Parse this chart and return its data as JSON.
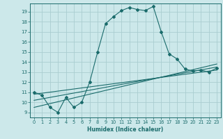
{
  "xlabel": "Humidex (Indice chaleur)",
  "bg_color": "#cce8ea",
  "grid_color": "#aacdd0",
  "line_color": "#1a6b6b",
  "xlim": [
    -0.5,
    23.5
  ],
  "ylim": [
    8.5,
    19.8
  ],
  "yticks": [
    9,
    10,
    11,
    12,
    13,
    14,
    15,
    16,
    17,
    18,
    19
  ],
  "xticks": [
    0,
    1,
    2,
    3,
    4,
    5,
    6,
    7,
    8,
    9,
    10,
    11,
    12,
    13,
    14,
    15,
    16,
    17,
    18,
    19,
    20,
    21,
    22,
    23
  ],
  "series": [
    {
      "x": [
        0,
        1,
        2,
        3,
        4,
        5,
        6,
        7,
        8,
        9,
        10,
        11,
        12,
        13,
        14,
        15,
        16,
        17,
        18,
        19,
        20,
        21,
        22,
        23
      ],
      "y": [
        11.0,
        10.7,
        9.5,
        9.0,
        10.5,
        9.5,
        10.0,
        12.0,
        15.0,
        17.8,
        18.5,
        19.1,
        19.4,
        19.2,
        19.1,
        19.5,
        17.0,
        14.8,
        14.3,
        13.3,
        13.1,
        13.2,
        13.0,
        13.4
      ]
    },
    {
      "x": [
        0,
        23
      ],
      "y": [
        9.5,
        13.8
      ]
    },
    {
      "x": [
        0,
        23
      ],
      "y": [
        10.2,
        13.5
      ]
    },
    {
      "x": [
        0,
        23
      ],
      "y": [
        10.8,
        13.2
      ]
    }
  ]
}
